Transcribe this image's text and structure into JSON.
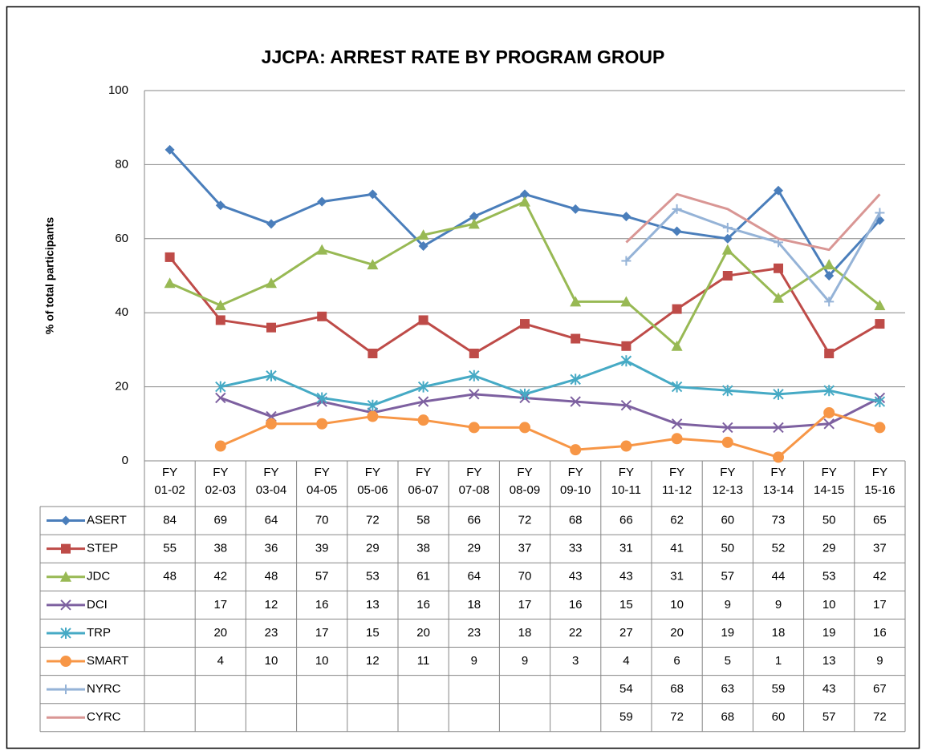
{
  "chart_data": {
    "type": "line",
    "title": "JJCPA: ARREST RATE BY PROGRAM GROUP",
    "y_label": "% of total participants",
    "categories": [
      "FY 01-02",
      "FY 02-03",
      "FY 03-04",
      "FY 04-05",
      "FY 05-06",
      "FY 06-07",
      "FY 07-08",
      "FY 08-09",
      "FY 09-10",
      "FY 10-11",
      "FY 11-12",
      "FY 12-13",
      "FY 13-14",
      "FY 14-15",
      "FY 15-16"
    ],
    "ylim": [
      0,
      100
    ],
    "yticks": [
      0,
      20,
      40,
      60,
      80,
      100
    ],
    "grid": true,
    "series": [
      {
        "name": "ASERT",
        "color": "#4a7ebb",
        "marker": "diamond",
        "values": [
          84,
          69,
          64,
          70,
          72,
          58,
          66,
          72,
          68,
          66,
          62,
          60,
          73,
          50,
          65
        ]
      },
      {
        "name": "STEP",
        "color": "#be4b48",
        "marker": "square",
        "values": [
          55,
          38,
          36,
          39,
          29,
          38,
          29,
          37,
          33,
          31,
          41,
          50,
          52,
          29,
          37
        ]
      },
      {
        "name": "JDC",
        "color": "#98b954",
        "marker": "triangle",
        "values": [
          48,
          42,
          48,
          57,
          53,
          61,
          64,
          70,
          43,
          43,
          31,
          57,
          44,
          53,
          42
        ]
      },
      {
        "name": "DCI",
        "color": "#7d60a0",
        "marker": "x",
        "values": [
          null,
          17,
          12,
          16,
          13,
          16,
          18,
          17,
          16,
          15,
          10,
          9,
          9,
          10,
          17
        ]
      },
      {
        "name": "TRP",
        "color": "#46aac5",
        "marker": "star",
        "values": [
          null,
          20,
          23,
          17,
          15,
          20,
          23,
          18,
          22,
          27,
          20,
          19,
          18,
          19,
          16
        ]
      },
      {
        "name": "SMART",
        "color": "#f79646",
        "marker": "circle",
        "values": [
          null,
          4,
          10,
          10,
          12,
          11,
          9,
          9,
          3,
          4,
          6,
          5,
          1,
          13,
          9
        ]
      },
      {
        "name": "NYRC",
        "color": "#95b3d7",
        "marker": "plus",
        "values": [
          null,
          null,
          null,
          null,
          null,
          null,
          null,
          null,
          null,
          54,
          68,
          63,
          59,
          43,
          67
        ]
      },
      {
        "name": "CYRC",
        "color": "#d99694",
        "marker": "none",
        "values": [
          null,
          null,
          null,
          null,
          null,
          null,
          null,
          null,
          null,
          59,
          72,
          68,
          60,
          57,
          72
        ]
      }
    ]
  }
}
